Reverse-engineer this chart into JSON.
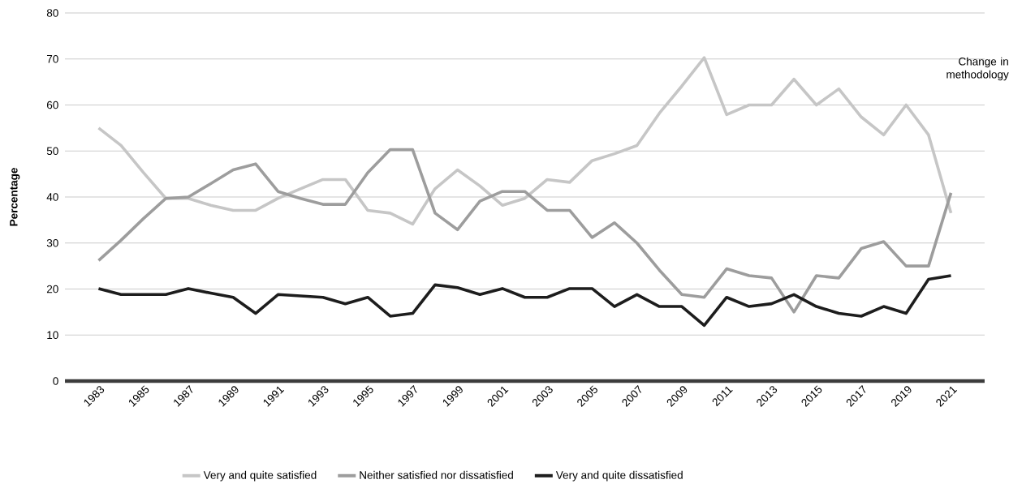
{
  "chart_data": {
    "type": "line",
    "ylabel": "Percentage",
    "x": [
      1983,
      1984,
      1985,
      1986,
      1987,
      1988,
      1989,
      1990,
      1991,
      1992,
      1993,
      1994,
      1995,
      1996,
      1997,
      1998,
      1999,
      2000,
      2001,
      2002,
      2003,
      2004,
      2005,
      2006,
      2007,
      2008,
      2009,
      2010,
      2011,
      2012,
      2013,
      2014,
      2015,
      2016,
      2017,
      2018,
      2019,
      2020,
      2021
    ],
    "series": [
      {
        "name": "Very and quite satisfied",
        "color": "#c6c6c6",
        "values": [
          55.0,
          51.2,
          45.3,
          39.7,
          39.7,
          38.2,
          37.1,
          37.1,
          39.7,
          41.8,
          43.8,
          43.8,
          37.1,
          36.5,
          34.1,
          41.8,
          45.9,
          42.4,
          38.2,
          39.7,
          43.8,
          43.2,
          47.9,
          49.4,
          51.2,
          58.2,
          64.1,
          70.3,
          57.9,
          60.0,
          60.0,
          65.6,
          60.0,
          63.5,
          57.4,
          53.5,
          60.0,
          53.5,
          36.5
        ]
      },
      {
        "name": "Neither satisfied nor dissatisfied",
        "color": "#9d9d9d",
        "values": [
          26.2,
          30.6,
          35.3,
          39.7,
          40.0,
          42.9,
          45.9,
          47.2,
          41.2,
          39.7,
          38.4,
          38.4,
          45.3,
          50.3,
          50.3,
          36.5,
          32.9,
          39.1,
          41.2,
          41.2,
          37.1,
          37.1,
          31.2,
          34.4,
          30.0,
          24.1,
          18.8,
          18.2,
          24.4,
          22.9,
          22.4,
          15.0,
          22.9,
          22.4,
          28.8,
          30.3,
          25.0,
          25.0,
          40.9
        ]
      },
      {
        "name": "Very and quite dissatisfied",
        "color": "#1d1d1d",
        "values": [
          20.1,
          18.8,
          18.8,
          18.8,
          20.1,
          19.1,
          18.2,
          14.7,
          18.8,
          18.5,
          18.2,
          16.8,
          18.2,
          14.1,
          14.7,
          20.9,
          20.3,
          18.8,
          20.1,
          18.2,
          18.2,
          20.1,
          20.1,
          16.2,
          18.8,
          16.2,
          16.2,
          12.1,
          18.2,
          16.2,
          16.8,
          18.8,
          16.2,
          14.7,
          14.1,
          16.2,
          14.7,
          22.1,
          22.9
        ]
      }
    ],
    "xlim": [
      1981.5,
      2022.5
    ],
    "xticks": [
      1983,
      1985,
      1987,
      1989,
      1991,
      1993,
      1995,
      1997,
      1999,
      2001,
      2003,
      2005,
      2007,
      2009,
      2011,
      2013,
      2015,
      2017,
      2019,
      2021
    ],
    "ylim": [
      0,
      80
    ],
    "yticks": [
      0,
      10,
      20,
      30,
      40,
      50,
      60,
      70,
      80
    ],
    "grid": "y",
    "legend": "bottom",
    "marker": "none",
    "annotations": [
      "Change in methodology"
    ]
  }
}
